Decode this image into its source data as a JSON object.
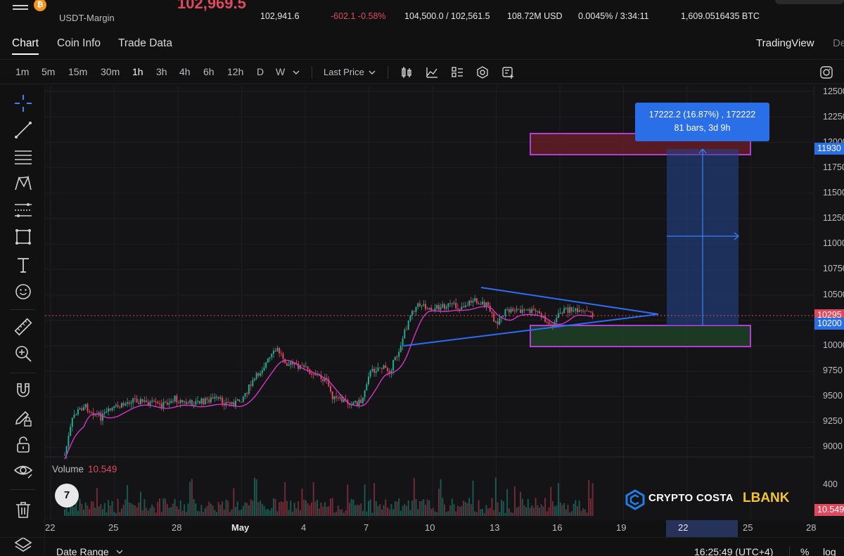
{
  "ticker": {
    "symbol_sub": "USDT-Margin",
    "last_price": "102,969.5",
    "mark_price": "102,941.6",
    "change": "-602.1 -0.58%",
    "high_low": "104,500.0 / 102,561.5",
    "turnover": "108.72M USD",
    "funding": "0.0045% / 3:34:11",
    "open_interest": "1,609.0516435 BTC"
  },
  "tabs": [
    {
      "label": "Chart",
      "active": true
    },
    {
      "label": "Coin Info",
      "active": false
    },
    {
      "label": "Trade Data",
      "active": false
    }
  ],
  "tabs_right": {
    "tradingview": "TradingView",
    "depth": "De"
  },
  "timeframes": [
    {
      "label": "1m",
      "active": false
    },
    {
      "label": "5m",
      "active": false
    },
    {
      "label": "15m",
      "active": false
    },
    {
      "label": "30m",
      "active": false
    },
    {
      "label": "1h",
      "active": true
    },
    {
      "label": "3h",
      "active": false
    },
    {
      "label": "4h",
      "active": false
    },
    {
      "label": "6h",
      "active": false
    },
    {
      "label": "12h",
      "active": false
    },
    {
      "label": "D",
      "active": false
    },
    {
      "label": "W",
      "active": false
    }
  ],
  "price_type": {
    "selected": "Last Price"
  },
  "toolbar_icons": [
    "candle-style-icon",
    "indicator-icon",
    "layout-icon",
    "settings-icon",
    "add-chart-icon",
    "screenshot-icon"
  ],
  "left_tools": [
    "crosshair-icon",
    "trend-line-icon",
    "horizontal-lines-icon",
    "pattern-icon",
    "fib-icon",
    "rectangle-icon",
    "text-icon",
    "emoji-icon",
    "ruler-icon",
    "zoom-in-icon",
    "magnet-icon",
    "pencil-lock-icon",
    "lock-icon",
    "eye-icon",
    "trash-icon",
    "layers-icon"
  ],
  "y_axis": {
    "ticks": [
      "12500",
      "12250",
      "12000",
      "11750",
      "11500",
      "11250",
      "11000",
      "10750",
      "10500",
      "10250",
      "10000",
      "9750",
      "9500",
      "9250",
      "9000"
    ],
    "flags": [
      {
        "label": "11930",
        "color": "#2b6fe8"
      },
      {
        "label": "10295",
        "color": "#e0495d"
      },
      {
        "label": "10200",
        "color": "#2b6fe8"
      }
    ],
    "volume_ticks": [
      "400"
    ],
    "volume_flag": {
      "label": "10.549",
      "color": "#e0495d"
    }
  },
  "x_axis": {
    "ticks": [
      "22",
      "25",
      "28",
      "May",
      "4",
      "7",
      "10",
      "13",
      "16",
      "19",
      "22",
      "25",
      "28"
    ]
  },
  "volume": {
    "label": "Volume",
    "value": "10.549"
  },
  "measure": {
    "line1": "17222.2 (16.87%) , 172222",
    "line2": "81 bars, 3d 9h"
  },
  "brand": {
    "logo_text": "7",
    "crypto_costa": "CRYPTO COSTA",
    "lbank": "LBANK"
  },
  "colors": {
    "up": "#22ab94",
    "down": "#e0495d",
    "ma": "#d633c8",
    "trendline": "#2d6cf5",
    "zone_border": "#b13fd6",
    "accent_blue": "#2b6fe8"
  },
  "bottom": {
    "date_range": "Date Range",
    "time": "16:25:49 (UTC+4)",
    "percent": "%",
    "log": "log"
  }
}
